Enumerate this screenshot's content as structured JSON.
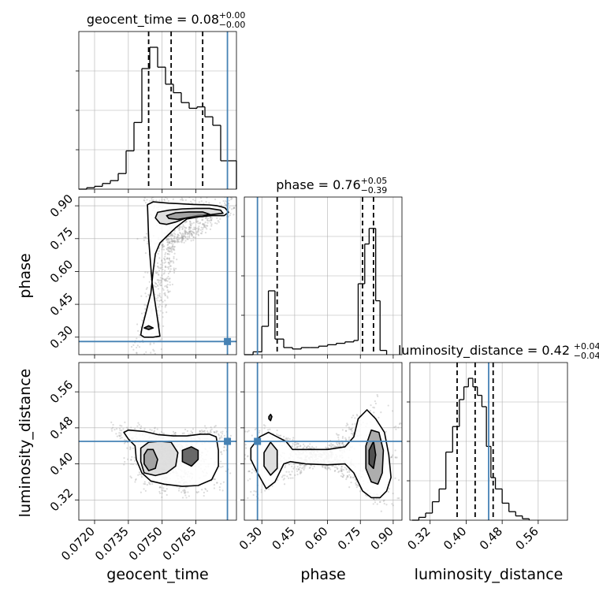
{
  "chart_data": {
    "type": "corner",
    "parameters": [
      "geocent_time",
      "phase",
      "luminosity_distance"
    ],
    "axis_labels": {
      "geocent_time": "geocent_time",
      "phase": "phase",
      "luminosity_distance": "luminosity_distance"
    },
    "ranges": {
      "geocent_time": [
        0.0713,
        0.0783
      ],
      "phase": [
        0.22,
        0.94
      ],
      "luminosity_distance": [
        0.275,
        0.625
      ]
    },
    "ticks": {
      "geocent_time": [
        0.072,
        0.0735,
        0.075,
        0.0765
      ],
      "phase": [
        0.3,
        0.45,
        0.6,
        0.75,
        0.9
      ],
      "luminosity_distance": [
        0.32,
        0.4,
        0.48,
        0.56
      ]
    },
    "tick_labels": {
      "geocent_time": [
        "0.0720",
        "0.0735",
        "0.0750",
        "0.0765"
      ],
      "phase": [
        "0.30",
        "0.45",
        "0.60",
        "0.75",
        "0.90"
      ],
      "luminosity_distance": [
        "0.32",
        "0.40",
        "0.48",
        "0.56"
      ]
    },
    "truths": {
      "geocent_time": 0.0779,
      "phase": 0.28,
      "luminosity_distance": 0.45
    },
    "titles": {
      "geocent_time": {
        "text": "geocent_time = 0.08",
        "plus": "+0.00",
        "minus": "−0.00"
      },
      "phase": {
        "text": "phase = 0.76",
        "plus": "+0.05",
        "minus": "−0.39"
      },
      "luminosity_distance": {
        "text": "luminosity_distance = 0.42",
        "plus": "+0.04",
        "minus": "−0.04"
      }
    },
    "quantiles": {
      "geocent_time": [
        0.0744,
        0.0754,
        0.0768
      ],
      "phase": [
        0.37,
        0.76,
        0.81
      ],
      "luminosity_distance": [
        0.38,
        0.42,
        0.46
      ]
    },
    "histograms": {
      "geocent_time": {
        "edges": [
          0.0713,
          0.07165,
          0.072,
          0.07235,
          0.0727,
          0.07305,
          0.0734,
          0.07375,
          0.0741,
          0.07445,
          0.0748,
          0.07515,
          0.0755,
          0.07585,
          0.0762,
          0.07655,
          0.0769,
          0.07725,
          0.0776,
          0.0783
        ],
        "counts": [
          0.0,
          0.01,
          0.02,
          0.04,
          0.06,
          0.11,
          0.27,
          0.47,
          0.85,
          1.0,
          0.86,
          0.74,
          0.68,
          0.61,
          0.57,
          0.58,
          0.51,
          0.45,
          0.2
        ]
      },
      "phase": {
        "edges": [
          0.22,
          0.26,
          0.3,
          0.33,
          0.36,
          0.4,
          0.44,
          0.48,
          0.52,
          0.56,
          0.6,
          0.64,
          0.68,
          0.72,
          0.74,
          0.77,
          0.79,
          0.82,
          0.84,
          0.87
        ],
        "counts": [
          0.0,
          0.02,
          0.2,
          0.45,
          0.11,
          0.05,
          0.04,
          0.05,
          0.05,
          0.06,
          0.07,
          0.08,
          0.09,
          0.1,
          0.5,
          0.78,
          0.89,
          0.38,
          0.03
        ]
      },
      "luminosity_distance": {
        "edges": [
          0.28,
          0.295,
          0.31,
          0.325,
          0.34,
          0.355,
          0.37,
          0.385,
          0.395,
          0.405,
          0.415,
          0.425,
          0.435,
          0.445,
          0.455,
          0.465,
          0.48,
          0.495,
          0.51,
          0.525,
          0.54
        ],
        "counts": [
          0.0,
          0.02,
          0.05,
          0.13,
          0.22,
          0.48,
          0.66,
          0.85,
          0.94,
          1.0,
          0.94,
          0.88,
          0.8,
          0.52,
          0.3,
          0.22,
          0.12,
          0.06,
          0.03,
          0.01
        ]
      }
    },
    "contours_2d": {
      "phase_vs_geocent_time": [
        {
          "level": 1,
          "x": [
            0.07435,
            0.0746,
            0.07495,
            0.0753,
            0.0757,
            0.07605,
            0.0764,
            0.07675,
            0.0771,
            0.07745,
            0.07765,
            0.0778,
            0.07795,
            0.07775,
            0.0772,
            0.07665,
            0.0761,
            0.0756,
            0.0752,
            0.0749,
            0.0747,
            0.0746,
            0.0745,
            0.07425,
            0.0741,
            0.07405,
            0.0742,
            0.0746,
            0.0749,
            0.0748,
            0.07455,
            0.0744
          ],
          "y": [
            0.905,
            0.918,
            0.915,
            0.912,
            0.91,
            0.908,
            0.906,
            0.905,
            0.904,
            0.9,
            0.895,
            0.89,
            0.87,
            0.855,
            0.855,
            0.85,
            0.84,
            0.8,
            0.76,
            0.73,
            0.68,
            0.6,
            0.5,
            0.4,
            0.34,
            0.31,
            0.3,
            0.3,
            0.305,
            0.38,
            0.55,
            0.75
          ]
        },
        {
          "level": 2,
          "x": [
            0.0748,
            0.0753,
            0.0759,
            0.0765,
            0.0771,
            0.0776,
            0.0777,
            0.0772,
            0.0766,
            0.0761,
            0.0756,
            0.0752,
            0.0749,
            0.0747
          ],
          "y": [
            0.87,
            0.88,
            0.886,
            0.888,
            0.888,
            0.88,
            0.866,
            0.86,
            0.856,
            0.846,
            0.826,
            0.815,
            0.82,
            0.845
          ]
        },
        {
          "level": 3,
          "x": [
            0.0752,
            0.0756,
            0.0762,
            0.0768,
            0.0771,
            0.0768,
            0.0762,
            0.0757,
            0.0753
          ],
          "y": [
            0.855,
            0.868,
            0.872,
            0.872,
            0.862,
            0.852,
            0.846,
            0.838,
            0.842
          ]
        },
        {
          "level": 4,
          "x": [
            0.0742,
            0.0744,
            0.0746,
            0.0744
          ],
          "y": [
            0.342,
            0.352,
            0.342,
            0.335
          ]
        }
      ],
      "luminosity_distance_vs_geocent_time": [
        {
          "level": 1,
          "x": [
            0.0735,
            0.0742,
            0.0748,
            0.0755,
            0.0761,
            0.0767,
            0.0771,
            0.0774,
            0.0775,
            0.0775,
            0.0772,
            0.0766,
            0.0759,
            0.0751,
            0.0745,
            0.0741,
            0.07385,
            0.0738,
            0.0735,
            0.0733
          ],
          "y": [
            0.475,
            0.472,
            0.465,
            0.462,
            0.462,
            0.466,
            0.466,
            0.46,
            0.43,
            0.395,
            0.365,
            0.352,
            0.35,
            0.355,
            0.362,
            0.38,
            0.41,
            0.44,
            0.455,
            0.47
          ]
        },
        {
          "level": 2,
          "x": [
            0.07405,
            0.0744,
            0.0749,
            0.0754,
            0.0757,
            0.0756,
            0.0752,
            0.0747,
            0.0742,
            0.07405
          ],
          "y": [
            0.435,
            0.448,
            0.45,
            0.448,
            0.425,
            0.395,
            0.38,
            0.374,
            0.38,
            0.405
          ]
        },
        {
          "level": 3,
          "x": [
            0.0742,
            0.07435,
            0.0746,
            0.0748,
            0.0747,
            0.0744,
            0.0742
          ],
          "y": [
            0.42,
            0.432,
            0.432,
            0.41,
            0.39,
            0.385,
            0.4
          ]
        },
        {
          "level": 4,
          "x": [
            0.0759,
            0.0763,
            0.0766,
            0.0766,
            0.0763,
            0.0759
          ],
          "y": [
            0.43,
            0.438,
            0.43,
            0.41,
            0.395,
            0.405
          ]
        }
      ],
      "luminosity_distance_vs_phase": [
        {
          "level": 1,
          "x": [
            0.25,
            0.29,
            0.33,
            0.37,
            0.41,
            0.44,
            0.52,
            0.6,
            0.68,
            0.72,
            0.74,
            0.78,
            0.82,
            0.86,
            0.88,
            0.89,
            0.87,
            0.84,
            0.8,
            0.76,
            0.72,
            0.68,
            0.6,
            0.5,
            0.43,
            0.4,
            0.36,
            0.32,
            0.28,
            0.25
          ],
          "y": [
            0.435,
            0.46,
            0.47,
            0.46,
            0.45,
            0.432,
            0.432,
            0.432,
            0.438,
            0.46,
            0.5,
            0.52,
            0.5,
            0.47,
            0.42,
            0.37,
            0.34,
            0.325,
            0.325,
            0.34,
            0.38,
            0.4,
            0.398,
            0.4,
            0.405,
            0.4,
            0.36,
            0.345,
            0.38,
            0.41
          ]
        },
        {
          "level": 2,
          "x": [
            0.31,
            0.34,
            0.37,
            0.37,
            0.34,
            0.31
          ],
          "y": [
            0.425,
            0.448,
            0.43,
            0.39,
            0.375,
            0.395
          ]
        },
        {
          "level": 3,
          "x": [
            0.775,
            0.8,
            0.835,
            0.855,
            0.85,
            0.83,
            0.8,
            0.775
          ],
          "y": [
            0.44,
            0.475,
            0.47,
            0.43,
            0.38,
            0.355,
            0.36,
            0.39
          ]
        },
        {
          "level": 4,
          "x": [
            0.79,
            0.81,
            0.82,
            0.81,
            0.79
          ],
          "y": [
            0.43,
            0.45,
            0.42,
            0.39,
            0.4
          ]
        },
        {
          "level": 4,
          "x": [
            0.332,
            0.34,
            0.346,
            0.34,
            0.332
          ],
          "y": [
            0.505,
            0.51,
            0.505,
            0.496,
            0.5
          ]
        }
      ]
    }
  }
}
